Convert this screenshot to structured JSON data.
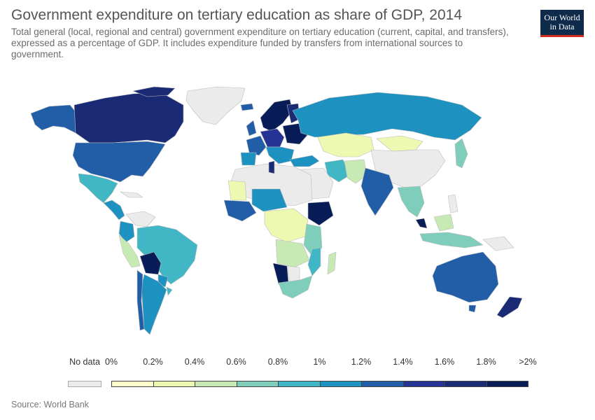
{
  "header": {
    "title": "Government expenditure on tertiary education as share of GDP, 2014",
    "subtitle": "Total general (local, regional and central) government expenditure on tertiary education (current, capital, and transfers), expressed as a percentage of GDP. It includes expenditure funded by transfers from international sources to government.",
    "logo_line1": "Our World",
    "logo_line2": "in Data"
  },
  "colors": {
    "no_data": "#ebebeb",
    "border": "#bdbdbd",
    "scale": [
      "#ffffcc",
      "#edf8b1",
      "#c7e9b4",
      "#7fcdbb",
      "#41b6c4",
      "#1d91c0",
      "#225ea8",
      "#253494",
      "#1a2a74",
      "#081d58"
    ]
  },
  "legend": {
    "no_data_label": "No data",
    "labels": [
      "0%",
      "0.2%",
      "0.4%",
      "0.6%",
      "0.8%",
      "1%",
      "1.2%",
      "1.4%",
      "1.6%",
      "1.8%",
      ">2%"
    ]
  },
  "source": "Source: World Bank"
}
